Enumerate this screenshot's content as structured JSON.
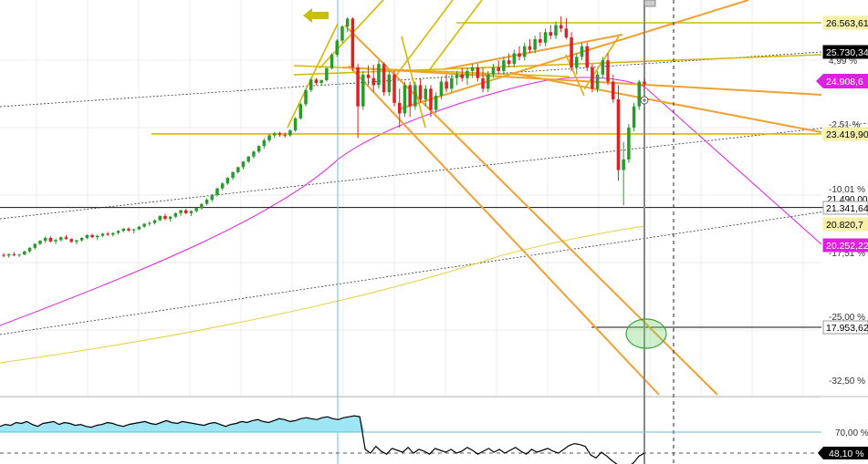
{
  "chart_data": {
    "type": "line",
    "title": "",
    "main_panel": {
      "price_tags": [
        {
          "label": "26.563,61",
          "value": 26563.61,
          "bg": "#f6f0a8",
          "fg": "#000000"
        },
        {
          "label": "25.730,34",
          "value": 25730.34,
          "bg": "#000000",
          "fg": "#ffffff"
        },
        {
          "label": "24.908,6",
          "value": 24908.6,
          "bg": "#e020e0",
          "fg": "#ffffff",
          "current": true
        },
        {
          "label": "23.419,90",
          "value": 23419.9,
          "bg": "#f6f0a8",
          "fg": "#000000"
        },
        {
          "label": "21.341,64",
          "value": 21341.64,
          "bg": "#ffffff",
          "fg": "#000000"
        },
        {
          "label": "20.820,7",
          "value": 20820.7,
          "bg": "#f6f0a8",
          "fg": "#000000"
        },
        {
          "label": "20.252,22",
          "value": 20252.22,
          "bg": "#e020e0",
          "fg": "#ffffff"
        },
        {
          "label": "17.953,62",
          "value": 17953.62,
          "bg": "#ffffff",
          "fg": "#000000"
        }
      ],
      "percent_ticks": [
        "4,99 %",
        "-2,51 %",
        "-10,01 %",
        "-17,51 %",
        "-25,00 %",
        "-32,50 %"
      ],
      "overlapped_tag_fragment": "21.490,00",
      "horizontal_levels": [
        26563.61,
        25730.34,
        23419.9,
        21341.64,
        17953.62
      ],
      "moving_averages": [
        {
          "name": "",
          "color": "#e020e0"
        },
        {
          "name": "",
          "color": "#e8d040"
        }
      ],
      "candles": [
        [
          20000,
          20050,
          19930,
          19980
        ],
        [
          19980,
          20040,
          19920,
          20020
        ],
        [
          20020,
          20080,
          19960,
          19990
        ],
        [
          19990,
          20030,
          19940,
          20010
        ],
        [
          20010,
          20120,
          19990,
          20100
        ],
        [
          20100,
          20220,
          20060,
          20200
        ],
        [
          20200,
          20330,
          20150,
          20310
        ],
        [
          20310,
          20420,
          20280,
          20400
        ],
        [
          20400,
          20520,
          20340,
          20480
        ],
        [
          20480,
          20530,
          20350,
          20380
        ],
        [
          20380,
          20460,
          20300,
          20420
        ],
        [
          20420,
          20520,
          20380,
          20500
        ],
        [
          20500,
          20560,
          20430,
          20450
        ],
        [
          20450,
          20470,
          20340,
          20370
        ],
        [
          20370,
          20430,
          20300,
          20410
        ],
        [
          20410,
          20500,
          20380,
          20480
        ],
        [
          20480,
          20580,
          20440,
          20560
        ],
        [
          20560,
          20600,
          20480,
          20500
        ],
        [
          20500,
          20570,
          20420,
          20540
        ],
        [
          20540,
          20620,
          20500,
          20600
        ],
        [
          20600,
          20650,
          20530,
          20570
        ],
        [
          20570,
          20640,
          20520,
          20620
        ],
        [
          20620,
          20700,
          20580,
          20680
        ],
        [
          20680,
          20760,
          20640,
          20740
        ],
        [
          20740,
          20780,
          20650,
          20690
        ],
        [
          20690,
          20740,
          20610,
          20720
        ],
        [
          20720,
          20820,
          20700,
          20800
        ],
        [
          20800,
          20900,
          20760,
          20880
        ],
        [
          20880,
          20950,
          20820,
          20900
        ],
        [
          20900,
          21000,
          20860,
          20980
        ],
        [
          20980,
          21120,
          20950,
          21100
        ],
        [
          21100,
          21160,
          20980,
          21020
        ],
        [
          21020,
          21100,
          20940,
          21080
        ],
        [
          21080,
          21200,
          21040,
          21180
        ],
        [
          21180,
          21280,
          21100,
          21260
        ],
        [
          21260,
          21300,
          21150,
          21180
        ],
        [
          21180,
          21260,
          21100,
          21240
        ],
        [
          21240,
          21340,
          21200,
          21320
        ],
        [
          21320,
          21460,
          21280,
          21440
        ],
        [
          21440,
          21600,
          21400,
          21560
        ],
        [
          21560,
          21720,
          21500,
          21700
        ],
        [
          21700,
          21900,
          21650,
          21880
        ],
        [
          21880,
          22050,
          21820,
          22020
        ],
        [
          22020,
          22200,
          21980,
          22180
        ],
        [
          22180,
          22360,
          22120,
          22340
        ],
        [
          22340,
          22500,
          22300,
          22480
        ],
        [
          22480,
          22650,
          22420,
          22640
        ],
        [
          22640,
          22800,
          22600,
          22780
        ],
        [
          22780,
          22950,
          22720,
          22920
        ],
        [
          22920,
          23100,
          22880,
          23080
        ],
        [
          23080,
          23300,
          23000,
          23240
        ],
        [
          23240,
          23420,
          23180,
          23380
        ],
        [
          23380,
          23480,
          23300,
          23440
        ],
        [
          23440,
          23480,
          23340,
          23400
        ],
        [
          23400,
          23460,
          23320,
          23380
        ],
        [
          23380,
          23560,
          23340,
          23520
        ],
        [
          23520,
          23900,
          23480,
          23860
        ],
        [
          23860,
          24300,
          23820,
          24260
        ],
        [
          24260,
          24700,
          24200,
          24660
        ],
        [
          24660,
          25000,
          24600,
          24960
        ],
        [
          24960,
          25000,
          24800,
          24860
        ],
        [
          24860,
          24960,
          24780,
          24940
        ],
        [
          24940,
          25300,
          24900,
          25280
        ],
        [
          25280,
          25700,
          25240,
          25660
        ],
        [
          25660,
          26100,
          25600,
          26060
        ],
        [
          26060,
          26500,
          26000,
          26460
        ],
        [
          26460,
          26720,
          26300,
          26680
        ],
        [
          26680,
          26720,
          25200,
          25300
        ],
        [
          25300,
          25400,
          23300,
          24200
        ],
        [
          24200,
          25200,
          24100,
          25100
        ],
        [
          25100,
          25360,
          24800,
          25000
        ],
        [
          25000,
          25380,
          24600,
          24800
        ],
        [
          24800,
          25500,
          24700,
          25400
        ],
        [
          25400,
          25450,
          24500,
          24600
        ],
        [
          24600,
          25200,
          24500,
          25100
        ],
        [
          25100,
          25200,
          24200,
          24300
        ],
        [
          24300,
          24700,
          23600,
          24000
        ],
        [
          24000,
          24900,
          23900,
          24800
        ],
        [
          24800,
          24900,
          23900,
          24200
        ],
        [
          24200,
          24900,
          24100,
          24800
        ],
        [
          24800,
          25000,
          24300,
          24400
        ],
        [
          24400,
          24800,
          24200,
          24700
        ],
        [
          24700,
          24800,
          23900,
          24100
        ],
        [
          24100,
          24600,
          24000,
          24500
        ],
        [
          24500,
          25000,
          24400,
          24900
        ],
        [
          24900,
          25100,
          24600,
          24700
        ],
        [
          24700,
          25100,
          24600,
          25000
        ],
        [
          25000,
          25200,
          24800,
          25100
        ],
        [
          25100,
          25300,
          24900,
          25000
        ],
        [
          25000,
          25300,
          24800,
          25200
        ],
        [
          25200,
          25400,
          25000,
          25300
        ],
        [
          25300,
          25400,
          24900,
          25000
        ],
        [
          25000,
          25300,
          24600,
          24700
        ],
        [
          24700,
          25200,
          24600,
          25100
        ],
        [
          25100,
          25400,
          25000,
          25300
        ],
        [
          25300,
          25500,
          25100,
          25200
        ],
        [
          25200,
          25600,
          25100,
          25500
        ],
        [
          25500,
          25700,
          25300,
          25400
        ],
        [
          25400,
          25800,
          25300,
          25700
        ],
        [
          25700,
          25900,
          25500,
          25600
        ],
        [
          25600,
          26000,
          25500,
          25900
        ],
        [
          25900,
          26100,
          25700,
          25800
        ],
        [
          25800,
          26200,
          25700,
          26100
        ],
        [
          26100,
          26300,
          25900,
          26000
        ],
        [
          26000,
          26400,
          25900,
          26300
        ],
        [
          26300,
          26500,
          26100,
          26200
        ],
        [
          26200,
          26600,
          26100,
          26500
        ],
        [
          26500,
          26750,
          26300,
          26400
        ],
        [
          26400,
          26700,
          26100,
          26150
        ],
        [
          26150,
          26300,
          25200,
          25300
        ],
        [
          25300,
          25700,
          25100,
          25600
        ],
        [
          25600,
          26000,
          25500,
          25900
        ],
        [
          25900,
          26000,
          25200,
          25300
        ],
        [
          25300,
          25400,
          24600,
          24700
        ],
        [
          24700,
          25200,
          24600,
          25100
        ],
        [
          25100,
          25600,
          25000,
          25500
        ],
        [
          25500,
          25700,
          24800,
          24900
        ],
        [
          24900,
          25100,
          24300,
          24400
        ],
        [
          24400,
          24800,
          22100,
          22400
        ],
        [
          22400,
          23200,
          21400,
          22700
        ],
        [
          22700,
          23700,
          22600,
          23600
        ],
        [
          23600,
          24300,
          23500,
          24200
        ],
        [
          24200,
          24950,
          24100,
          24900
        ],
        [
          24900,
          25000,
          24750,
          24830
        ]
      ],
      "reference_lines": {
        "vertical_event_index": 67,
        "dashed_vertical_label": "",
        "ellipse_target": 17953.62
      }
    },
    "sub_panel": {
      "ticks": [
        "70,00 %",
        "48,10 %"
      ],
      "threshold": 70.0,
      "current": 48.1,
      "current_tag": {
        "label": "48,10 %",
        "bg": "#000000",
        "fg": "#ffffff"
      },
      "values": [
        76,
        78,
        77,
        80,
        79,
        81,
        78,
        76,
        79,
        80,
        81,
        78,
        80,
        79,
        77,
        78,
        76,
        75,
        77,
        78,
        80,
        79,
        77,
        76,
        78,
        79,
        80,
        81,
        79,
        78,
        80,
        82,
        80,
        79,
        81,
        80,
        79,
        78,
        77,
        79,
        80,
        78,
        76,
        78,
        79,
        81,
        80,
        82,
        83,
        81,
        80,
        82,
        84,
        83,
        81,
        82,
        84,
        85,
        84,
        83,
        85,
        86,
        84,
        83,
        85,
        86,
        87,
        86,
        52,
        48,
        55,
        50,
        47,
        53,
        51,
        49,
        54,
        48,
        52,
        50,
        47,
        53,
        51,
        49,
        52,
        48,
        50,
        54,
        51,
        47,
        50,
        53,
        49,
        52,
        48,
        51,
        54,
        50,
        47,
        52,
        49,
        51,
        53,
        50,
        48,
        52,
        56,
        58,
        57,
        55,
        46,
        43,
        49,
        45,
        40,
        36,
        32,
        34,
        38,
        45,
        48
      ]
    }
  }
}
